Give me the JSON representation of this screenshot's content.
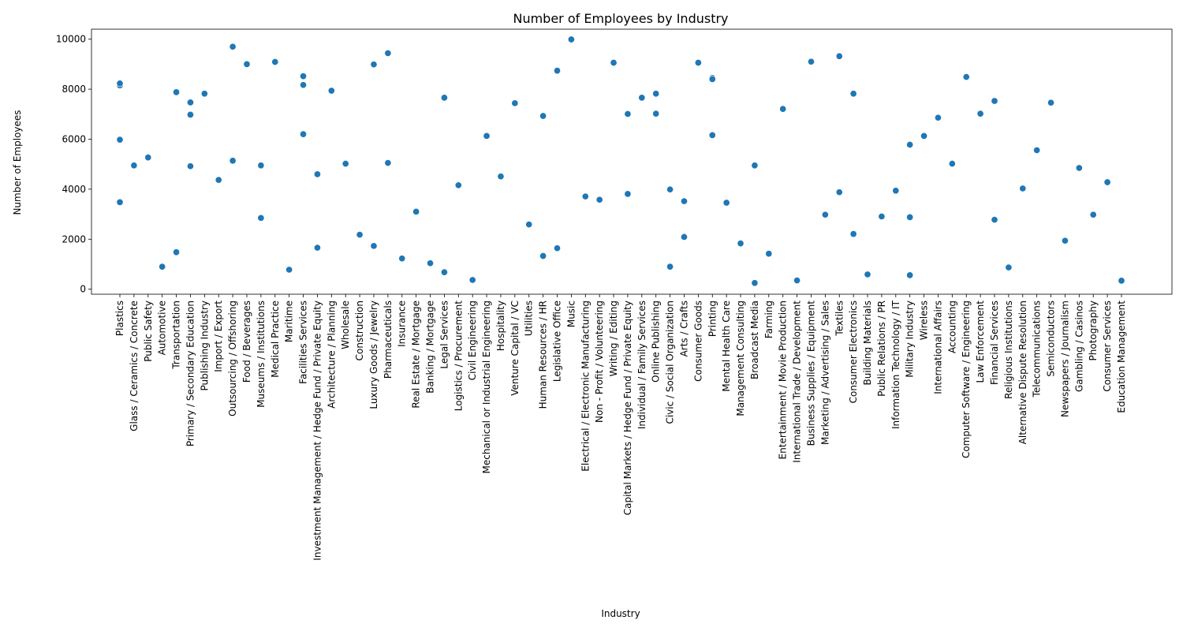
{
  "chart_data": {
    "type": "scatter",
    "title": "Number of Employees by Industry",
    "xlabel": "Industry",
    "ylabel": "Number of Employees",
    "ylim": [
      -200,
      10400
    ],
    "yticks": [
      0,
      2000,
      4000,
      6000,
      8000,
      10000
    ],
    "grid": false,
    "point_color": "#1f77b4",
    "categories": [
      "Plastics",
      "Glass / Ceramics / Concrete",
      "Public Safety",
      "Automotive",
      "Transportation",
      "Primary / Secondary Education",
      "Publishing Industry",
      "Import / Export",
      "Outsourcing / Offshoring",
      "Food / Beverages",
      "Museums / Institutions",
      "Medical Practice",
      "Maritime",
      "Facilities Services",
      "Investment Management / Hedge Fund / Private Equity",
      "Architecture / Planning",
      "Wholesale",
      "Construction",
      "Luxury Goods / Jewelry",
      "Pharmaceuticals",
      "Insurance",
      "Real Estate / Mortgage",
      "Banking / Mortgage",
      "Legal Services",
      "Logistics / Procurement",
      "Civil Engineering",
      "Mechanical or Industrial Engineering",
      "Hospitality",
      "Venture Capital / VC",
      "Utilities",
      "Human Resources / HR",
      "Legislative Office",
      "Music",
      "Electrical / Electronic Manufacturing",
      "Non - Profit / Volunteering",
      "Writing / Editing",
      "Capital Markets / Hedge Fund / Private Equity",
      "Individual / Family Services",
      "Online Publishing",
      "Civic / Social Organization",
      "Arts / Crafts",
      "Consumer Goods",
      "Printing",
      "Mental Health Care",
      "Management Consulting",
      "Broadcast Media",
      "Farming",
      "Entertainment / Movie Production",
      "International Trade / Development",
      "Business Supplies / Equipment",
      "Marketing / Advertising / Sales",
      "Textiles",
      "Consumer Electronics",
      "Building Materials",
      "Public Relations / PR",
      "Information Technology / IT",
      "Military Industry",
      "Wireless",
      "International Affairs",
      "Accounting",
      "Computer Software / Engineering",
      "Law Enforcement",
      "Financial Services",
      "Religious Institutions",
      "Alternative Dispute Resolution",
      "Telecommunications",
      "Semiconductors",
      "Newspapers / Journalism",
      "Gambling / Casinos",
      "Photography",
      "Consumer Services",
      "Education Management"
    ],
    "points": [
      {
        "x": "Plastics",
        "y": 8150
      },
      {
        "x": "Plastics",
        "y": 8230
      },
      {
        "x": "Plastics",
        "y": 5980
      },
      {
        "x": "Plastics",
        "y": 3480
      },
      {
        "x": "Glass / Ceramics / Concrete",
        "y": 4950
      },
      {
        "x": "Public Safety",
        "y": 5270
      },
      {
        "x": "Automotive",
        "y": 900
      },
      {
        "x": "Transportation",
        "y": 7880
      },
      {
        "x": "Transportation",
        "y": 1480
      },
      {
        "x": "Primary / Secondary Education",
        "y": 7470
      },
      {
        "x": "Primary / Secondary Education",
        "y": 6980
      },
      {
        "x": "Primary / Secondary Education",
        "y": 4920
      },
      {
        "x": "Publishing Industry",
        "y": 7820
      },
      {
        "x": "Import / Export",
        "y": 4370
      },
      {
        "x": "Outsourcing / Offshoring",
        "y": 9700
      },
      {
        "x": "Outsourcing / Offshoring",
        "y": 5140
      },
      {
        "x": "Food / Beverages",
        "y": 9000
      },
      {
        "x": "Museums / Institutions",
        "y": 4950
      },
      {
        "x": "Museums / Institutions",
        "y": 2850
      },
      {
        "x": "Medical Practice",
        "y": 9090
      },
      {
        "x": "Maritime",
        "y": 780
      },
      {
        "x": "Facilities Services",
        "y": 8520
      },
      {
        "x": "Facilities Services",
        "y": 8170
      },
      {
        "x": "Facilities Services",
        "y": 6200
      },
      {
        "x": "Investment Management / Hedge Fund / Private Equity",
        "y": 4600
      },
      {
        "x": "Investment Management / Hedge Fund / Private Equity",
        "y": 1660
      },
      {
        "x": "Architecture / Planning",
        "y": 7940
      },
      {
        "x": "Wholesale",
        "y": 5020
      },
      {
        "x": "Construction",
        "y": 2180
      },
      {
        "x": "Luxury Goods / Jewelry",
        "y": 8990
      },
      {
        "x": "Luxury Goods / Jewelry",
        "y": 1730
      },
      {
        "x": "Pharmaceuticals",
        "y": 9440
      },
      {
        "x": "Pharmaceuticals",
        "y": 5050
      },
      {
        "x": "Insurance",
        "y": 1230
      },
      {
        "x": "Real Estate / Mortgage",
        "y": 3100
      },
      {
        "x": "Banking / Mortgage",
        "y": 1040
      },
      {
        "x": "Legal Services",
        "y": 7660
      },
      {
        "x": "Legal Services",
        "y": 680
      },
      {
        "x": "Logistics / Procurement",
        "y": 4160
      },
      {
        "x": "Civil Engineering",
        "y": 370
      },
      {
        "x": "Mechanical or Industrial Engineering",
        "y": 6130
      },
      {
        "x": "Hospitality",
        "y": 4510
      },
      {
        "x": "Venture Capital / VC",
        "y": 7440
      },
      {
        "x": "Utilities",
        "y": 2590
      },
      {
        "x": "Human Resources / HR",
        "y": 6930
      },
      {
        "x": "Human Resources / HR",
        "y": 1330
      },
      {
        "x": "Legislative Office",
        "y": 8740
      },
      {
        "x": "Legislative Office",
        "y": 1640
      },
      {
        "x": "Music",
        "y": 9990
      },
      {
        "x": "Electrical / Electronic Manufacturing",
        "y": 3710
      },
      {
        "x": "Non - Profit / Volunteering",
        "y": 3580
      },
      {
        "x": "Writing / Editing",
        "y": 9060
      },
      {
        "x": "Capital Markets / Hedge Fund / Private Equity",
        "y": 7010
      },
      {
        "x": "Capital Markets / Hedge Fund / Private Equity",
        "y": 3810
      },
      {
        "x": "Individual / Family Services",
        "y": 7660
      },
      {
        "x": "Online Publishing",
        "y": 7820
      },
      {
        "x": "Online Publishing",
        "y": 7020
      },
      {
        "x": "Civic / Social Organization",
        "y": 3990
      },
      {
        "x": "Civic / Social Organization",
        "y": 900
      },
      {
        "x": "Arts / Crafts",
        "y": 3520
      },
      {
        "x": "Arts / Crafts",
        "y": 2090
      },
      {
        "x": "Consumer Goods",
        "y": 9060
      },
      {
        "x": "Printing",
        "y": 8450
      },
      {
        "x": "Printing",
        "y": 8400
      },
      {
        "x": "Printing",
        "y": 6160
      },
      {
        "x": "Mental Health Care",
        "y": 3460
      },
      {
        "x": "Management Consulting",
        "y": 1830
      },
      {
        "x": "Broadcast Media",
        "y": 4950
      },
      {
        "x": "Broadcast Media",
        "y": 250
      },
      {
        "x": "Farming",
        "y": 1420
      },
      {
        "x": "Entertainment / Movie Production",
        "y": 7210
      },
      {
        "x": "International Trade / Development",
        "y": 350
      },
      {
        "x": "Business Supplies / Equipment",
        "y": 9100
      },
      {
        "x": "Marketing / Advertising / Sales",
        "y": 2980
      },
      {
        "x": "Textiles",
        "y": 9320
      },
      {
        "x": "Textiles",
        "y": 3880
      },
      {
        "x": "Consumer Electronics",
        "y": 7820
      },
      {
        "x": "Consumer Electronics",
        "y": 2210
      },
      {
        "x": "Building Materials",
        "y": 590
      },
      {
        "x": "Public Relations / PR",
        "y": 2910
      },
      {
        "x": "Information Technology / IT",
        "y": 3940
      },
      {
        "x": "Military Industry",
        "y": 5780
      },
      {
        "x": "Military Industry",
        "y": 2880
      },
      {
        "x": "Military Industry",
        "y": 560
      },
      {
        "x": "Wireless",
        "y": 6130
      },
      {
        "x": "International Affairs",
        "y": 6860
      },
      {
        "x": "Accounting",
        "y": 5020
      },
      {
        "x": "Computer Software / Engineering",
        "y": 8490
      },
      {
        "x": "Law Enforcement",
        "y": 7020
      },
      {
        "x": "Financial Services",
        "y": 7530
      },
      {
        "x": "Financial Services",
        "y": 2780
      },
      {
        "x": "Religious Institutions",
        "y": 870
      },
      {
        "x": "Alternative Dispute Resolution",
        "y": 4030
      },
      {
        "x": "Telecommunications",
        "y": 5560
      },
      {
        "x": "Semiconductors",
        "y": 7460
      },
      {
        "x": "Newspapers / Journalism",
        "y": 1940
      },
      {
        "x": "Gambling / Casinos",
        "y": 4850
      },
      {
        "x": "Photography",
        "y": 2980
      },
      {
        "x": "Consumer Services",
        "y": 4280
      },
      {
        "x": "Education Management",
        "y": 340
      }
    ]
  }
}
